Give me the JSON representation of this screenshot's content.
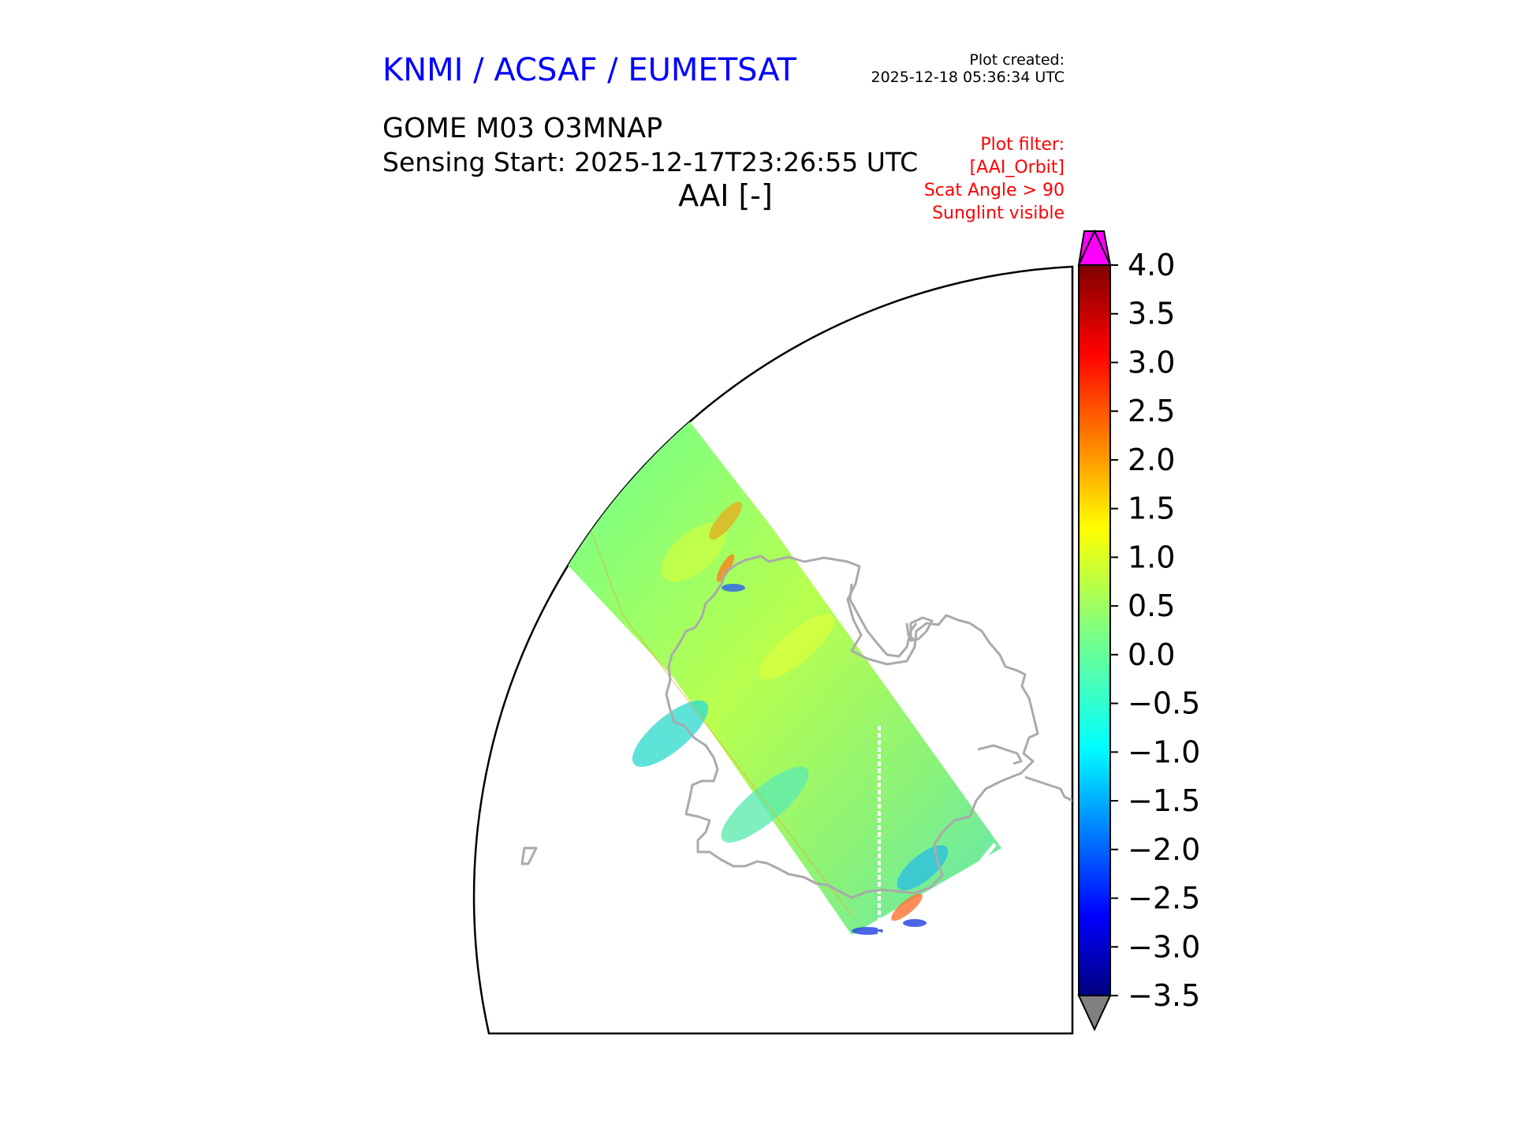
{
  "header": {
    "organisation": "KNMI / ACSAF / EUMETSAT",
    "plot_created_label": "Plot created:",
    "plot_created_time": "2025-12-18 05:36:34 UTC",
    "product": "GOME M03 O3MNAP",
    "sensing_start": "Sensing Start: 2025-12-17T23:26:55 UTC",
    "parameter": "AAI [-]"
  },
  "filter": {
    "title": "Plot filter:",
    "lines": [
      "[AAI_Orbit]",
      "Scat Angle > 90",
      "Sunglint visible"
    ]
  },
  "colors": {
    "organisation": "#0000ff",
    "filter": "#ff0000",
    "coastline": "#aaaaaa",
    "over_range": "#ff00ff",
    "under_range": "#808080"
  },
  "colorbar": {
    "colormap": "jet",
    "min": -3.5,
    "max": 4.0,
    "extend": "both",
    "ticks": [
      "4.0",
      "3.5",
      "3.0",
      "2.5",
      "2.0",
      "1.5",
      "1.0",
      "0.5",
      "0.0",
      "−0.5",
      "−1.0",
      "−1.5",
      "−2.0",
      "−2.5",
      "−3.0",
      "−3.5"
    ]
  }
}
